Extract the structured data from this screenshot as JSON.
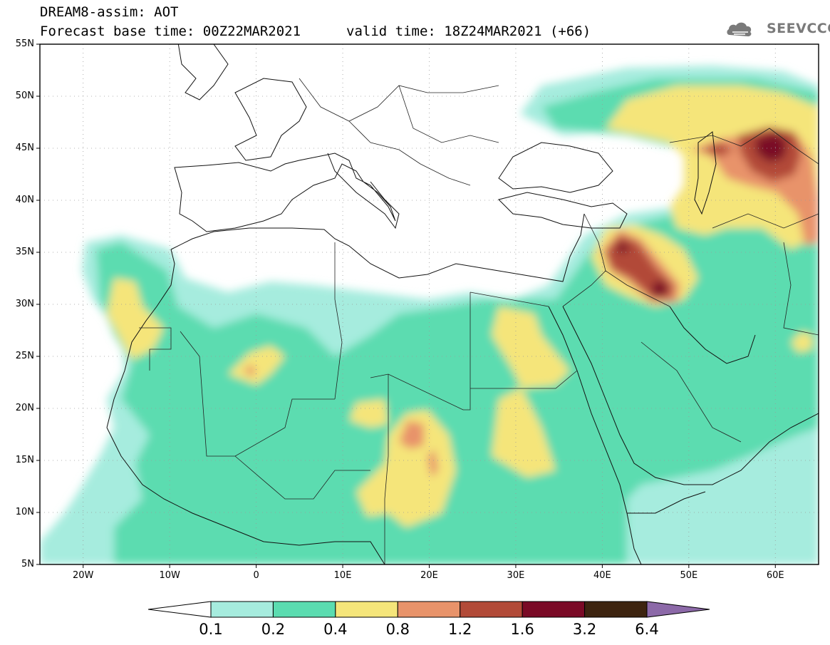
{
  "title": {
    "line1": "DREAM8-assim: AOT",
    "line2": "Forecast base time: 00Z22MAR2021",
    "valid": "valid time: 18Z24MAR2021 (+66)"
  },
  "logo": {
    "text": "SEEVCCC",
    "icon": "cloud-icon",
    "color": "#7a7a7a"
  },
  "map": {
    "lon_range": [
      -25,
      65
    ],
    "lat_range": [
      5,
      55
    ],
    "lat_ticks": [
      {
        "value": 55,
        "label": "55N"
      },
      {
        "value": 50,
        "label": "50N"
      },
      {
        "value": 45,
        "label": "45N"
      },
      {
        "value": 40,
        "label": "40N"
      },
      {
        "value": 35,
        "label": "35N"
      },
      {
        "value": 30,
        "label": "30N"
      },
      {
        "value": 25,
        "label": "25N"
      },
      {
        "value": 20,
        "label": "20N"
      },
      {
        "value": 15,
        "label": "15N"
      },
      {
        "value": 10,
        "label": "10N"
      },
      {
        "value": 5,
        "label": "5N"
      }
    ],
    "lon_ticks": [
      {
        "value": -20,
        "label": "20W"
      },
      {
        "value": -10,
        "label": "10W"
      },
      {
        "value": 0,
        "label": "0"
      },
      {
        "value": 10,
        "label": "10E"
      },
      {
        "value": 20,
        "label": "20E"
      },
      {
        "value": 30,
        "label": "30E"
      },
      {
        "value": 40,
        "label": "40E"
      },
      {
        "value": 50,
        "label": "50E"
      },
      {
        "value": 60,
        "label": "60E"
      }
    ],
    "gridlines": "dotted"
  },
  "colorbar": {
    "below_color": "#ffffff",
    "above_color": "#8c69a8",
    "bins": [
      {
        "color": "#a6ecde"
      },
      {
        "color": "#5bdcb0"
      },
      {
        "color": "#f5e57a"
      },
      {
        "color": "#e8936a"
      },
      {
        "color": "#b24a38"
      },
      {
        "color": "#7a0a26"
      },
      {
        "color": "#3d2410"
      }
    ],
    "labels": [
      "0.1",
      "0.2",
      "0.4",
      "0.8",
      "1.2",
      "1.6",
      "3.2",
      "6.4"
    ]
  }
}
